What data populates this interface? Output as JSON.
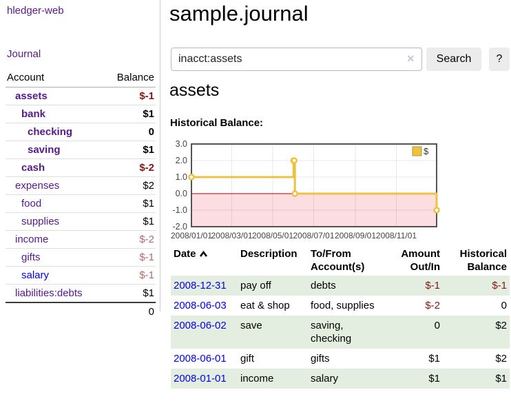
{
  "sidebar": {
    "brand": "hledger-web",
    "journal_link": "Journal",
    "accounts_table": {
      "headers": {
        "account": "Account",
        "balance": "Balance"
      },
      "rows": [
        {
          "name": "assets",
          "indent": 1,
          "bold": true,
          "balance": "$-1",
          "balance_style": "neg",
          "link_style": "purple"
        },
        {
          "name": "bank",
          "indent": 2,
          "bold": true,
          "balance": "$1",
          "balance_style": "pos",
          "link_style": "purple"
        },
        {
          "name": "checking",
          "indent": 3,
          "bold": true,
          "balance": "0",
          "balance_style": "pos",
          "link_style": "purple"
        },
        {
          "name": "saving",
          "indent": 3,
          "bold": true,
          "balance": "$1",
          "balance_style": "pos",
          "link_style": "purple"
        },
        {
          "name": "cash",
          "indent": 2,
          "bold": true,
          "balance": "$-2",
          "balance_style": "neg",
          "link_style": "purple"
        },
        {
          "name": "expenses",
          "indent": 1,
          "bold": false,
          "balance": "$2",
          "balance_style": "pos",
          "link_style": "purple"
        },
        {
          "name": "food",
          "indent": 2,
          "bold": false,
          "balance": "$1",
          "balance_style": "pos",
          "link_style": "purple"
        },
        {
          "name": "supplies",
          "indent": 2,
          "bold": false,
          "balance": "$1",
          "balance_style": "pos",
          "link_style": "purple"
        },
        {
          "name": "income",
          "indent": 1,
          "bold": false,
          "balance": "$-2",
          "balance_style": "dim-neg",
          "link_style": "purple"
        },
        {
          "name": "gifts",
          "indent": 2,
          "bold": false,
          "balance": "$-1",
          "balance_style": "dim-neg",
          "link_style": "purple"
        },
        {
          "name": "salary",
          "indent": 2,
          "bold": false,
          "balance": "$-1",
          "balance_style": "dim-neg",
          "link_style": "blue"
        },
        {
          "name": "liabilities:debts",
          "indent": 1,
          "bold": false,
          "balance": "$1",
          "balance_style": "pos",
          "link_style": "purple"
        }
      ],
      "total": "0"
    }
  },
  "header": {
    "title": "sample.journal"
  },
  "search": {
    "value": "inacct:assets",
    "clear_icon": "×",
    "button_label": "Search",
    "help_label": "?"
  },
  "account_heading": "assets",
  "chart_section_label": "Historical Balance:",
  "chart_data": {
    "type": "line",
    "title": "Historical Balance",
    "line_style": "step-after",
    "series": [
      {
        "name": "$",
        "color": "#edc240",
        "points": [
          [
            "2008-01-01",
            1
          ],
          [
            "2008-06-01",
            2
          ],
          [
            "2008-06-02",
            2
          ],
          [
            "2008-06-03",
            0
          ],
          [
            "2008-12-31",
            -1
          ]
        ]
      }
    ],
    "xlim": [
      "2008-01-01",
      "2008-12-31"
    ],
    "ylim": [
      -2,
      3
    ],
    "x_tick_labels": [
      "2008/01/01",
      "2008/03/01",
      "2008/05/01",
      "2008/07/01",
      "2008/09/01",
      "2008/11/01"
    ],
    "y_ticks": [
      3,
      2,
      1,
      0,
      -1,
      -2
    ],
    "y_tick_labels": [
      "3.0",
      "2.0",
      "1.0",
      "0.0",
      "-1.0",
      "-2.0"
    ],
    "grid": true,
    "legend": {
      "label": "$",
      "position": "top-right"
    },
    "negative_region_fill": "#fbdde2",
    "zero_line_color": "#a40000",
    "border_color": "#545454",
    "marker": {
      "fill": "#ffffff",
      "stroke": "#edc240"
    }
  },
  "register_table": {
    "headers": {
      "date": "Date",
      "description": "Description",
      "accounts": "To/From Account(s)",
      "amount": "Amount Out/In",
      "balance": "Historical Balance"
    },
    "sort_icon": "chevron-up",
    "rows": [
      {
        "date": "2008-12-31",
        "description": "pay off",
        "accounts": "debts",
        "amount": "$-1",
        "amount_style": "neg",
        "balance": "$-1",
        "balance_style": "neg"
      },
      {
        "date": "2008-06-03",
        "description": "eat & shop",
        "accounts": "food, supplies",
        "amount": "$-2",
        "amount_style": "neg",
        "balance": "0",
        "balance_style": "pos"
      },
      {
        "date": "2008-06-02",
        "description": "save",
        "accounts": "saving, checking",
        "amount": "0",
        "amount_style": "pos",
        "balance": "$2",
        "balance_style": "pos"
      },
      {
        "date": "2008-06-01",
        "description": "gift",
        "accounts": "gifts",
        "amount": "$1",
        "amount_style": "pos",
        "balance": "$2",
        "balance_style": "pos"
      },
      {
        "date": "2008-01-01",
        "description": "income",
        "accounts": "salary",
        "amount": "$1",
        "amount_style": "pos",
        "balance": "$1",
        "balance_style": "pos"
      }
    ]
  },
  "colors": {
    "link_purple": "#551a8b",
    "link_blue": "#0000ee",
    "negative": "#8a1515",
    "negative_dim": "#b36a6a",
    "row_stripe_green": "#e4eee0",
    "chart_gold": "#edc240",
    "chart_negative_fill": "#fbdde2",
    "chart_zero_line": "#a40000",
    "button_bg": "#ececec"
  }
}
